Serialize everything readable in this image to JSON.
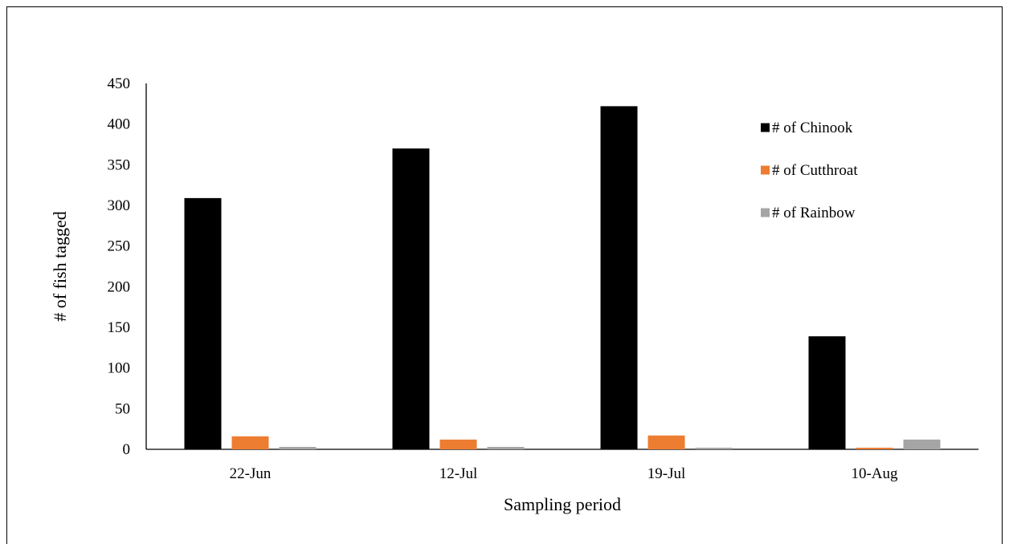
{
  "chart_data": {
    "type": "bar",
    "title": "",
    "xlabel": "Sampling period",
    "ylabel": "# of fish tagged",
    "categories": [
      "22-Jun",
      "12-Jul",
      "19-Jul",
      "10-Aug"
    ],
    "ylim": [
      0,
      450
    ],
    "yticks": [
      0,
      50,
      100,
      150,
      200,
      250,
      300,
      350,
      400,
      450
    ],
    "yticks_text": [
      "0",
      "50",
      "100",
      "150",
      "200",
      "250",
      "300",
      "350",
      "400",
      "450"
    ],
    "grid": false,
    "legend_position": "right",
    "series": [
      {
        "name": "# of Chinook",
        "color": "#000000",
        "values": [
          309,
          370,
          422,
          139
        ]
      },
      {
        "name": "# of Cutthroat",
        "color": "#ed7d31",
        "values": [
          16,
          12,
          17,
          2
        ]
      },
      {
        "name": "# of Rainbow",
        "color": "#a5a5a5",
        "values": [
          3,
          3,
          2,
          12
        ]
      }
    ]
  }
}
